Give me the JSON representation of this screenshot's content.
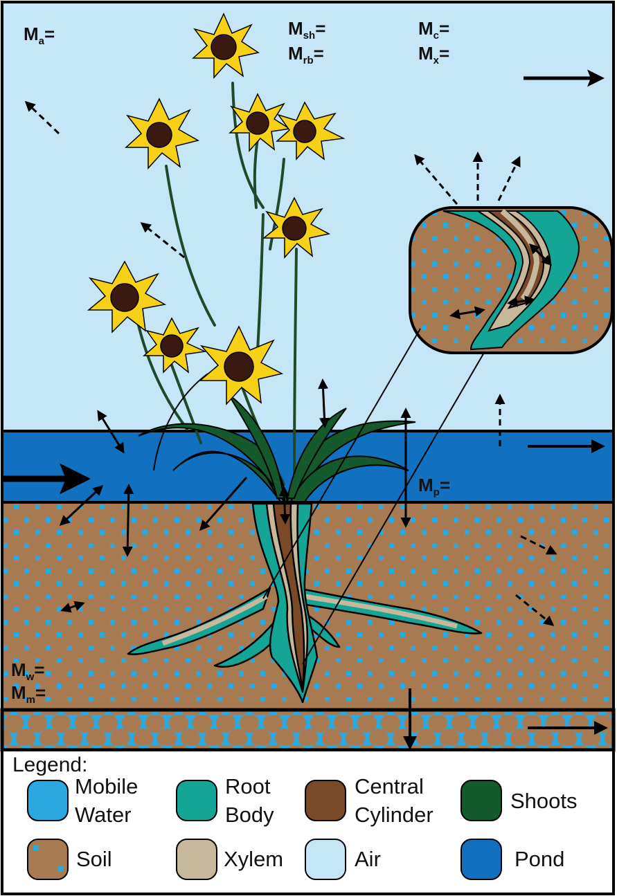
{
  "labels": {
    "air": {
      "main": "M",
      "sub": "a",
      "suffix": "="
    },
    "shoots": {
      "main": "M",
      "sub": "sh",
      "suffix": "="
    },
    "root_body": {
      "main": "M",
      "sub": "rb",
      "suffix": "="
    },
    "central_cylinder": {
      "main": "M",
      "sub": "c",
      "suffix": "="
    },
    "xylem": {
      "main": "M",
      "sub": "x",
      "suffix": "="
    },
    "pond": {
      "main": "M",
      "sub": "p",
      "suffix": "="
    },
    "water": {
      "main": "M",
      "sub": "w",
      "suffix": "="
    },
    "soil": {
      "main": "M",
      "sub": "m",
      "suffix": "="
    }
  },
  "legend": {
    "title": "Legend:",
    "items": [
      {
        "line1": "Mobile",
        "line2": "Water",
        "color": "#29a9e0"
      },
      {
        "line1": "Root",
        "line2": "Body",
        "color": "#14a597"
      },
      {
        "line1": "Central",
        "line2": "Cylinder",
        "color": "#7a4a28"
      },
      {
        "line1": "Shoots",
        "line2": "",
        "color": "#145a2c"
      },
      {
        "line1": "Soil",
        "line2": "",
        "color": "#a87a52"
      },
      {
        "line1": "Xylem",
        "line2": "",
        "color": "#c7b89c"
      },
      {
        "line1": "Air",
        "line2": "",
        "color": "#c5e6f7"
      },
      {
        "line1": "Pond",
        "line2": "",
        "color": "#1170c0"
      }
    ]
  },
  "colors": {
    "air": "#c5e6f7",
    "pond": "#1170c0",
    "soil": "#a87a52",
    "water": "#29a9e0",
    "root_body": "#14a597",
    "xylem": "#c7b89c",
    "central_cylinder": "#7a4a28",
    "shoots": "#145a2c",
    "petal": "#f7d117",
    "petal_shade": "#e0a800",
    "flower_center": "#3a1a10"
  }
}
